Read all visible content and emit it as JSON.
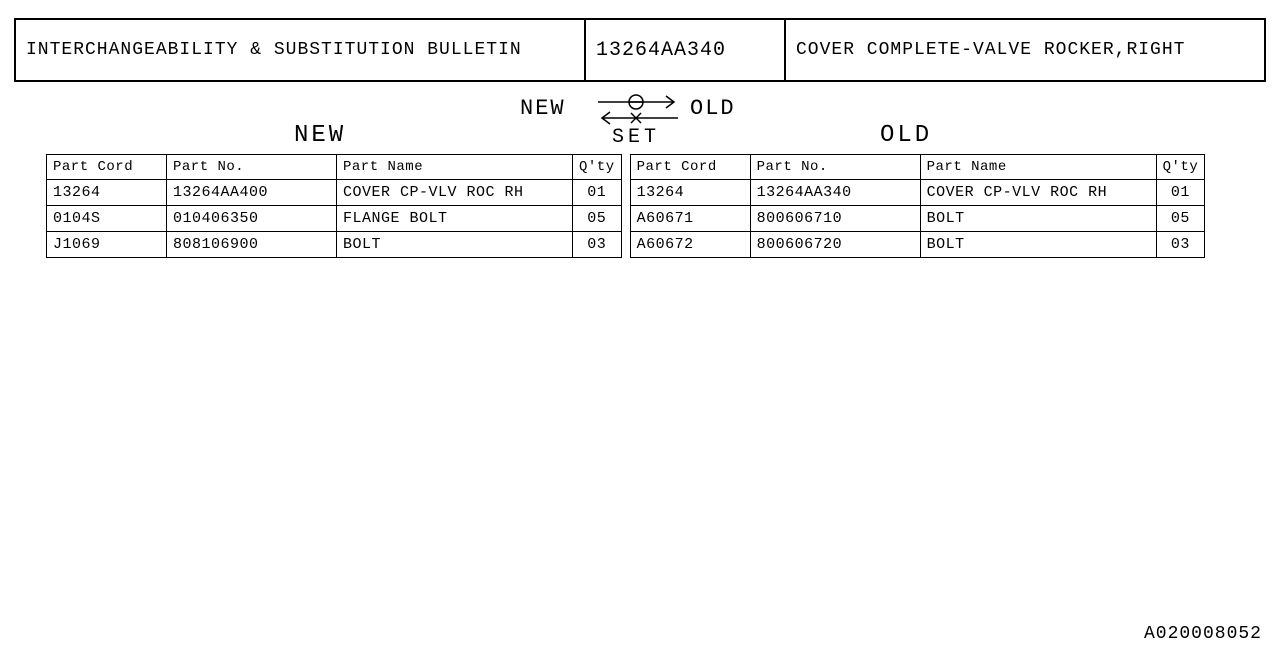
{
  "header": {
    "title": "INTERCHANGEABILITY & SUBSTITUTION BULLETIN",
    "part_number": "13264AA340",
    "description": "COVER COMPLETE-VALVE ROCKER,RIGHT"
  },
  "labels": {
    "new": "NEW",
    "old": "OLD",
    "set": "SET",
    "heading_new": "NEW",
    "heading_old": "OLD"
  },
  "columns": {
    "part_cord": "Part Cord",
    "part_no": "Part No.",
    "part_name": "Part Name",
    "qty": "Q'ty"
  },
  "new_rows": [
    {
      "cord": "13264",
      "no": "13264AA400",
      "name": "COVER CP-VLV ROC RH",
      "qty": "01"
    },
    {
      "cord": "0104S",
      "no": "010406350",
      "name": "FLANGE BOLT",
      "qty": "05"
    },
    {
      "cord": "J1069",
      "no": "808106900",
      "name": "BOLT",
      "qty": "03"
    }
  ],
  "old_rows": [
    {
      "cord": "13264",
      "no": "13264AA340",
      "name": "COVER CP-VLV ROC RH",
      "qty": "01"
    },
    {
      "cord": "A60671",
      "no": "800606710",
      "name": "BOLT",
      "qty": "05"
    },
    {
      "cord": "A60672",
      "no": "800606720",
      "name": "BOLT",
      "qty": "03"
    }
  ],
  "footer_code": "A020008052",
  "style": {
    "border_color": "#000000",
    "background_color": "#ffffff",
    "font_family": "Courier New",
    "header_font_size": 18,
    "table_font_size": 15,
    "label_font_size": 22,
    "column_widths": {
      "cord": 120,
      "no": 170,
      "name": 236,
      "qty": 42
    },
    "arrow_stroke": "#000000",
    "arrow_stroke_width": 1.5
  }
}
